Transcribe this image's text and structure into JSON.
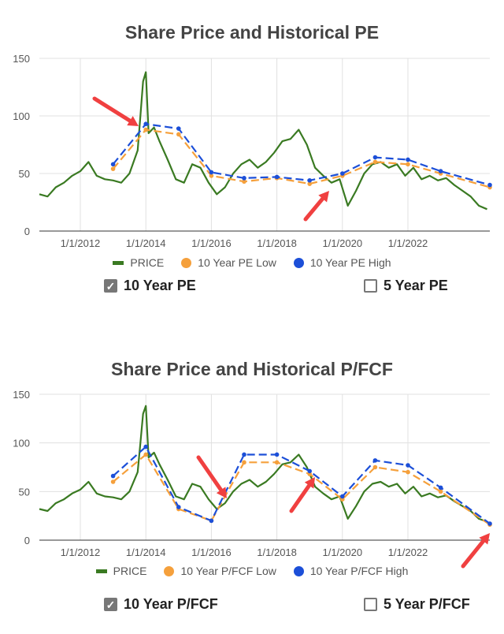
{
  "colors": {
    "price": "#3a7a22",
    "pe_low": "#f5a03c",
    "pe_high": "#1c4fd8",
    "grid": "#e0e0e0",
    "arrow": "#f04040"
  },
  "pe_chart": {
    "title": "Share Price and Historical PE",
    "toggle_10": "10 Year PE",
    "toggle_5": "5 Year PE",
    "toggle_10_checked": true,
    "toggle_5_checked": false,
    "legend": [
      "PRICE",
      "10 Year PE Low",
      "10 Year PE High"
    ]
  },
  "pfcf_chart": {
    "title": "Share Price and Historical P/FCF",
    "toggle_10": "10 Year P/FCF",
    "toggle_5": "5 Year P/FCF",
    "toggle_10_checked": true,
    "toggle_5_checked": false,
    "legend": [
      "PRICE",
      "10 Year P/FCF Low",
      "10 Year P/FCF High"
    ]
  },
  "chart_data": [
    {
      "type": "line",
      "title": "Share Price and Historical PE",
      "xlabel": "",
      "ylabel": "",
      "x_ticks": [
        "1/1/2012",
        "1/1/2014",
        "1/1/2016",
        "1/1/2018",
        "1/1/2020",
        "1/1/2022"
      ],
      "y_ticks": [
        0,
        50,
        100,
        150
      ],
      "xlim": [
        "2010-10",
        "2024-07"
      ],
      "ylim": [
        0,
        150
      ],
      "grid": true,
      "legend_position": "bottom",
      "series": [
        {
          "name": "PRICE",
          "points": [
            [
              "2010-10",
              32
            ],
            [
              "2011-01",
              30
            ],
            [
              "2011-04",
              38
            ],
            [
              "2011-07",
              42
            ],
            [
              "2011-10",
              48
            ],
            [
              "2012-01",
              52
            ],
            [
              "2012-04",
              60
            ],
            [
              "2012-07",
              48
            ],
            [
              "2012-10",
              45
            ],
            [
              "2013-01",
              44
            ],
            [
              "2013-04",
              42
            ],
            [
              "2013-07",
              50
            ],
            [
              "2013-10",
              70
            ],
            [
              "2013-11",
              100
            ],
            [
              "2013-12",
              130
            ],
            [
              "2014-01",
              138
            ],
            [
              "2014-02",
              85
            ],
            [
              "2014-04",
              90
            ],
            [
              "2014-06",
              78
            ],
            [
              "2014-09",
              62
            ],
            [
              "2014-12",
              45
            ],
            [
              "2015-03",
              42
            ],
            [
              "2015-06",
              58
            ],
            [
              "2015-09",
              55
            ],
            [
              "2015-12",
              42
            ],
            [
              "2016-03",
              32
            ],
            [
              "2016-06",
              38
            ],
            [
              "2016-09",
              50
            ],
            [
              "2016-12",
              58
            ],
            [
              "2017-03",
              62
            ],
            [
              "2017-06",
              55
            ],
            [
              "2017-09",
              60
            ],
            [
              "2017-12",
              68
            ],
            [
              "2018-03",
              78
            ],
            [
              "2018-06",
              80
            ],
            [
              "2018-09",
              88
            ],
            [
              "2018-12",
              75
            ],
            [
              "2019-03",
              55
            ],
            [
              "2019-06",
              48
            ],
            [
              "2019-09",
              42
            ],
            [
              "2019-12",
              45
            ],
            [
              "2020-03",
              22
            ],
            [
              "2020-06",
              35
            ],
            [
              "2020-09",
              50
            ],
            [
              "2020-12",
              58
            ],
            [
              "2021-03",
              60
            ],
            [
              "2021-06",
              55
            ],
            [
              "2021-09",
              58
            ],
            [
              "2021-12",
              48
            ],
            [
              "2022-03",
              55
            ],
            [
              "2022-06",
              45
            ],
            [
              "2022-09",
              48
            ],
            [
              "2022-12",
              44
            ],
            [
              "2023-03",
              46
            ],
            [
              "2023-06",
              40
            ],
            [
              "2023-09",
              35
            ],
            [
              "2023-12",
              30
            ],
            [
              "2024-03",
              22
            ],
            [
              "2024-06",
              19
            ]
          ]
        },
        {
          "name": "10 Year PE Low",
          "points": [
            [
              "2013-01",
              54
            ],
            [
              "2014-01",
              88
            ],
            [
              "2015-01",
              84
            ],
            [
              "2016-01",
              48
            ],
            [
              "2017-01",
              43
            ],
            [
              "2018-01",
              46
            ],
            [
              "2019-01",
              41
            ],
            [
              "2020-01",
              48
            ],
            [
              "2021-01",
              60
            ],
            [
              "2022-01",
              58
            ],
            [
              "2023-01",
              50
            ],
            [
              "2024-07",
              38
            ]
          ]
        },
        {
          "name": "10 Year PE High",
          "points": [
            [
              "2013-01",
              58
            ],
            [
              "2014-01",
              93
            ],
            [
              "2015-01",
              89
            ],
            [
              "2016-01",
              51
            ],
            [
              "2017-01",
              46
            ],
            [
              "2018-01",
              47
            ],
            [
              "2019-01",
              44
            ],
            [
              "2020-01",
              50
            ],
            [
              "2021-01",
              64
            ],
            [
              "2022-01",
              62
            ],
            [
              "2023-01",
              52
            ],
            [
              "2024-07",
              40
            ]
          ]
        }
      ]
    },
    {
      "type": "line",
      "title": "Share Price and Historical P/FCF",
      "xlabel": "",
      "ylabel": "",
      "x_ticks": [
        "1/1/2012",
        "1/1/2014",
        "1/1/2016",
        "1/1/2018",
        "1/1/2020",
        "1/1/2022"
      ],
      "y_ticks": [
        0,
        50,
        100,
        150
      ],
      "xlim": [
        "2010-10",
        "2024-07"
      ],
      "ylim": [
        0,
        150
      ],
      "grid": true,
      "legend_position": "bottom",
      "series": [
        {
          "name": "PRICE",
          "points": [
            [
              "2010-10",
              32
            ],
            [
              "2011-01",
              30
            ],
            [
              "2011-04",
              38
            ],
            [
              "2011-07",
              42
            ],
            [
              "2011-10",
              48
            ],
            [
              "2012-01",
              52
            ],
            [
              "2012-04",
              60
            ],
            [
              "2012-07",
              48
            ],
            [
              "2012-10",
              45
            ],
            [
              "2013-01",
              44
            ],
            [
              "2013-04",
              42
            ],
            [
              "2013-07",
              50
            ],
            [
              "2013-10",
              70
            ],
            [
              "2013-11",
              100
            ],
            [
              "2013-12",
              130
            ],
            [
              "2014-01",
              138
            ],
            [
              "2014-02",
              85
            ],
            [
              "2014-04",
              90
            ],
            [
              "2014-06",
              78
            ],
            [
              "2014-09",
              62
            ],
            [
              "2014-12",
              45
            ],
            [
              "2015-03",
              42
            ],
            [
              "2015-06",
              58
            ],
            [
              "2015-09",
              55
            ],
            [
              "2015-12",
              42
            ],
            [
              "2016-03",
              32
            ],
            [
              "2016-06",
              38
            ],
            [
              "2016-09",
              50
            ],
            [
              "2016-12",
              58
            ],
            [
              "2017-03",
              62
            ],
            [
              "2017-06",
              55
            ],
            [
              "2017-09",
              60
            ],
            [
              "2017-12",
              68
            ],
            [
              "2018-03",
              78
            ],
            [
              "2018-06",
              80
            ],
            [
              "2018-09",
              88
            ],
            [
              "2018-12",
              75
            ],
            [
              "2019-03",
              55
            ],
            [
              "2019-06",
              48
            ],
            [
              "2019-09",
              42
            ],
            [
              "2019-12",
              45
            ],
            [
              "2020-03",
              22
            ],
            [
              "2020-06",
              35
            ],
            [
              "2020-09",
              50
            ],
            [
              "2020-12",
              58
            ],
            [
              "2021-03",
              60
            ],
            [
              "2021-06",
              55
            ],
            [
              "2021-09",
              58
            ],
            [
              "2021-12",
              48
            ],
            [
              "2022-03",
              55
            ],
            [
              "2022-06",
              45
            ],
            [
              "2022-09",
              48
            ],
            [
              "2022-12",
              44
            ],
            [
              "2023-03",
              46
            ],
            [
              "2023-06",
              40
            ],
            [
              "2023-09",
              35
            ],
            [
              "2023-12",
              30
            ],
            [
              "2024-03",
              22
            ],
            [
              "2024-06",
              19
            ]
          ]
        },
        {
          "name": "10 Year P/FCF Low",
          "points": [
            [
              "2013-01",
              60
            ],
            [
              "2014-01",
              88
            ],
            [
              "2015-01",
              32
            ],
            [
              "2016-01",
              20
            ],
            [
              "2017-01",
              80
            ],
            [
              "2018-01",
              80
            ],
            [
              "2019-01",
              68
            ],
            [
              "2020-01",
              42
            ],
            [
              "2021-01",
              75
            ],
            [
              "2022-01",
              70
            ],
            [
              "2023-01",
              50
            ],
            [
              "2024-07",
              16
            ]
          ]
        },
        {
          "name": "10 Year P/FCF High",
          "points": [
            [
              "2013-01",
              66
            ],
            [
              "2014-01",
              96
            ],
            [
              "2015-01",
              34
            ],
            [
              "2016-01",
              20
            ],
            [
              "2017-01",
              88
            ],
            [
              "2018-01",
              88
            ],
            [
              "2019-01",
              71
            ],
            [
              "2020-01",
              45
            ],
            [
              "2021-01",
              82
            ],
            [
              "2022-01",
              77
            ],
            [
              "2023-01",
              54
            ],
            [
              "2024-07",
              17
            ]
          ]
        }
      ]
    }
  ]
}
